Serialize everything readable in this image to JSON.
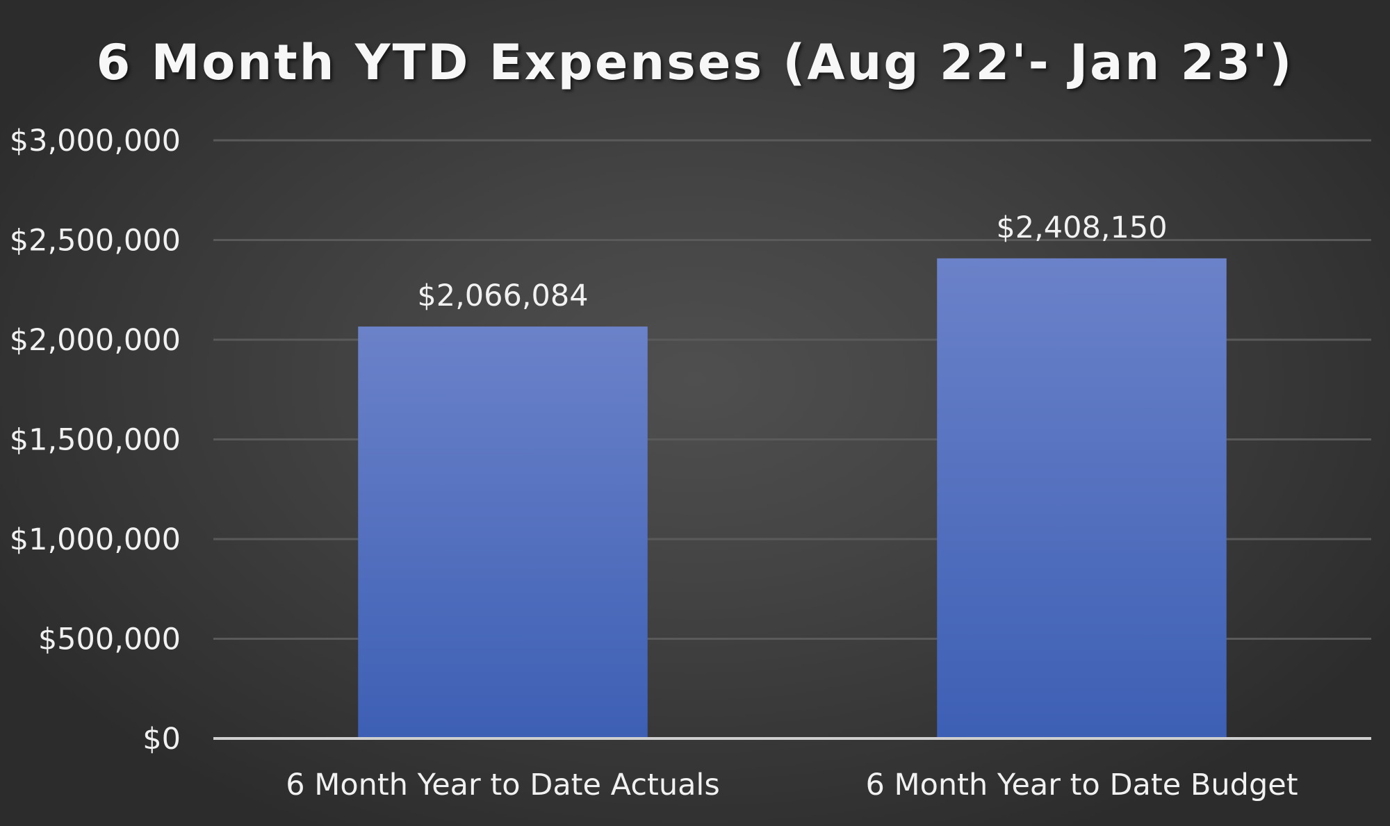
{
  "chart_data": {
    "type": "bar",
    "title": "6 Month YTD Expenses (Aug 22'- Jan 23')",
    "xlabel": "",
    "ylabel": "",
    "categories": [
      "6 Month Year to Date Actuals",
      "6 Month Year to Date Budget"
    ],
    "values": [
      2066084,
      2408150
    ],
    "data_labels": [
      "$2,066,084",
      "$2,408,150"
    ],
    "ylim": [
      0,
      3000000
    ],
    "y_ticks": [
      0,
      500000,
      1000000,
      1500000,
      2000000,
      2500000,
      3000000
    ],
    "y_tick_labels": [
      "$0",
      "$500,000",
      "$1,000,000",
      "$1,500,000",
      "$2,000,000",
      "$2,500,000",
      "$3,000,000"
    ],
    "grid": true,
    "legend": "none",
    "bar_color": "#4a6cc4",
    "bar_color_top": "#6b82c9",
    "bar_color_bottom": "#3d5fb4",
    "background_color": "#3a3a3a"
  }
}
